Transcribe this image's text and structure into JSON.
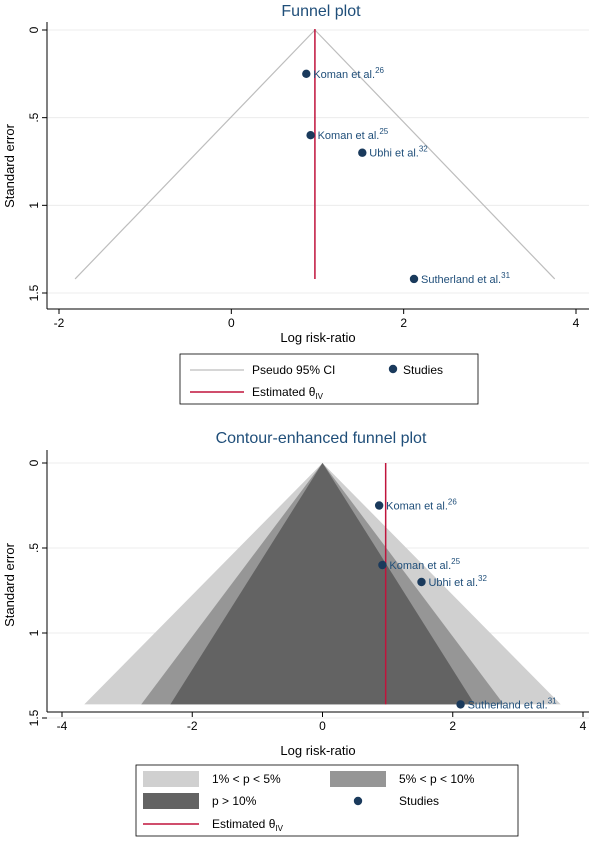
{
  "chart_data": [
    {
      "type": "scatter",
      "title": "Funnel plot",
      "xlabel": "Log risk-ratio",
      "ylabel": "Standard error",
      "xlim": [
        -2.1,
        4.1
      ],
      "ylim": [
        1.5,
        0
      ],
      "x_ticks": [
        -2,
        0,
        2,
        4
      ],
      "y_ticks": [
        0,
        0.5,
        1,
        1.5
      ],
      "x_tick_labels": [
        "-2",
        "0",
        "2",
        "4"
      ],
      "y_tick_labels": [
        "0",
        ".5",
        "1",
        "1.5"
      ],
      "estimate": 0.97,
      "ci_multiplier": 1.96,
      "se_max": 1.42,
      "points": [
        {
          "label": "Koman et al.",
          "sup": "26",
          "x": 0.87,
          "y": 0.25
        },
        {
          "label": "Koman et al.",
          "sup": "25",
          "x": 0.92,
          "y": 0.6
        },
        {
          "label": "Ubhi et al.",
          "sup": "32",
          "x": 1.52,
          "y": 0.7
        },
        {
          "label": "Sutherland et al.",
          "sup": "31",
          "x": 2.12,
          "y": 1.42
        }
      ],
      "legend": {
        "ci": "Pseudo 95% CI",
        "studies": "Studies",
        "estimate": "Estimated θ",
        "estimate_sub": "IV"
      },
      "colors": {
        "ci": "#bdbdbd",
        "estimate": "#c0143c",
        "studies": "#1a3a5c"
      }
    },
    {
      "type": "area",
      "title": "Contour-enhanced funnel plot",
      "xlabel": "Log risk-ratio",
      "ylabel": "Standard error",
      "xlim": [
        -4.3,
        4.3
      ],
      "ylim": [
        1.5,
        0
      ],
      "x_ticks": [
        -4,
        -2,
        0,
        2,
        4
      ],
      "y_ticks": [
        0,
        0.5,
        1,
        1.5
      ],
      "x_tick_labels": [
        "-4",
        "-2",
        "0",
        "2",
        "4"
      ],
      "y_tick_labels": [
        "0",
        ".5",
        "1",
        "1.5"
      ],
      "estimate": 0.97,
      "se_max": 1.42,
      "contours": [
        {
          "label": "1% < p < 5%",
          "z": 2.576,
          "color": "#d0d0d0"
        },
        {
          "label": "5% < p < 10%",
          "z": 1.96,
          "color": "#969696"
        },
        {
          "label": "p > 10%",
          "z": 1.645,
          "color": "#636363"
        }
      ],
      "points": [
        {
          "label": "Koman et al.",
          "sup": "26",
          "x": 0.87,
          "y": 0.25
        },
        {
          "label": "Koman et al.",
          "sup": "25",
          "x": 0.92,
          "y": 0.6
        },
        {
          "label": "Ubhi et al.",
          "sup": "32",
          "x": 1.52,
          "y": 0.7
        },
        {
          "label": "Sutherland et al.",
          "sup": "31",
          "x": 2.12,
          "y": 1.42
        }
      ],
      "legend": {
        "studies": "Studies",
        "estimate": "Estimated θ",
        "estimate_sub": "IV"
      },
      "colors": {
        "estimate": "#c0143c",
        "studies": "#1a3a5c"
      }
    }
  ]
}
